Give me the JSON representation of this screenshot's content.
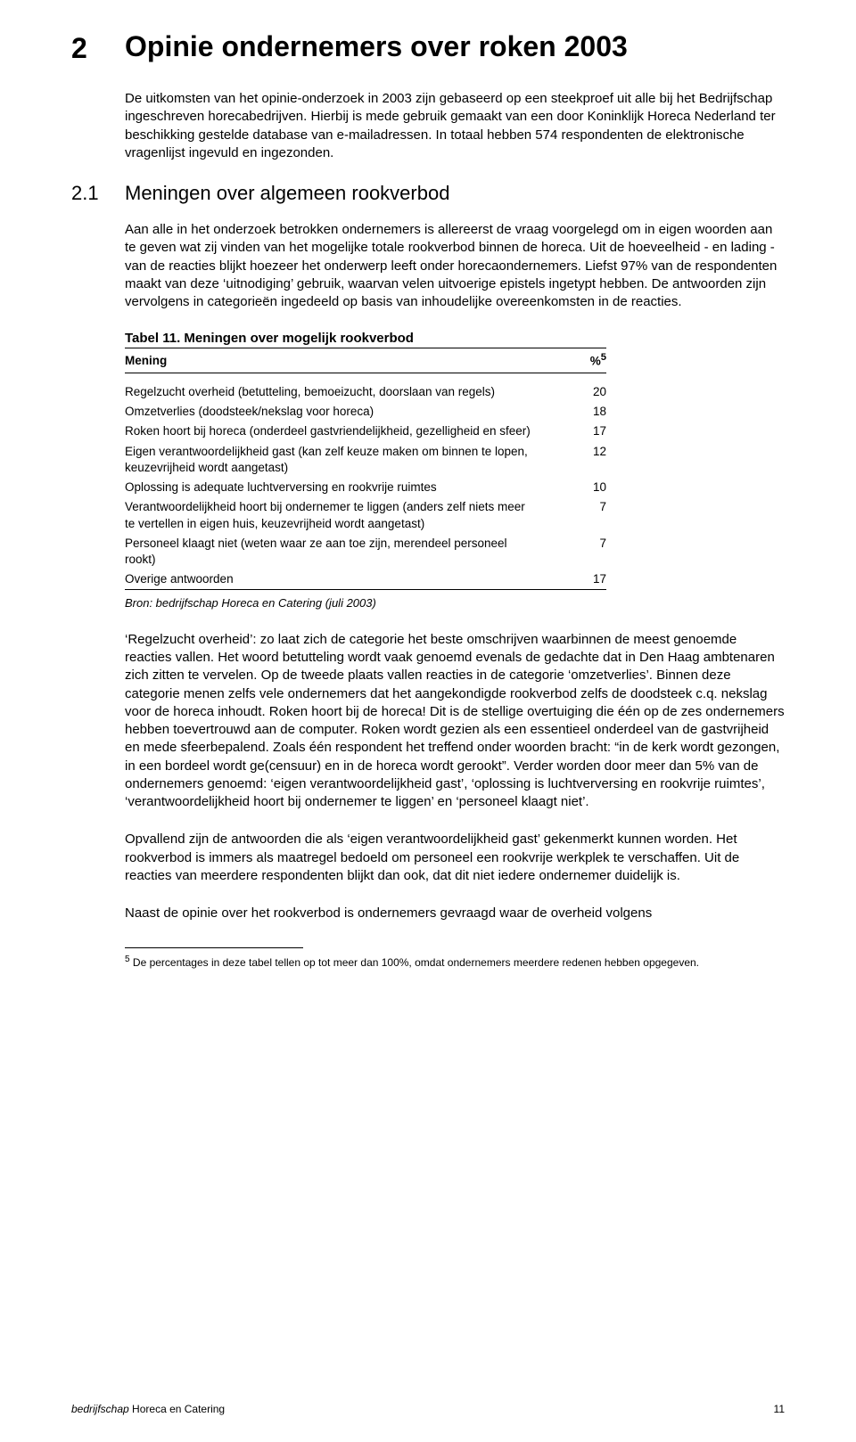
{
  "chapter": {
    "num": "2",
    "title": "Opinie ondernemers over roken 2003"
  },
  "intro_p1": "De uitkomsten van het opinie-onderzoek in 2003 zijn gebaseerd op een steekproef uit alle bij het Bedrijfschap ingeschreven horecabedrijven.",
  "intro_p2": "Hierbij is mede gebruik gemaakt van een door Koninklijk Horeca Nederland ter beschikking gestelde database van e-mailadressen. In totaal hebben 574 respondenten de elektronische vragenlijst ingevuld en ingezonden.",
  "section": {
    "num": "2.1",
    "title": "Meningen over algemeen rookverbod"
  },
  "sec_p1": "Aan alle in het onderzoek betrokken ondernemers is allereerst de vraag voorgelegd om in eigen woorden aan te geven wat zij vinden van het mogelijke totale rookverbod binnen de horeca. Uit de hoeveelheid - en lading - van de reacties blijkt hoezeer het onderwerp leeft onder horecaondernemers. Liefst 97% van de respondenten maakt van deze ‘uitnodiging’ gebruik, waarvan velen uitvoerige epistels ingetypt hebben. De antwoorden zijn vervolgens in categorieën ingedeeld op basis van inhoudelijke overeenkomsten in de reacties.",
  "table": {
    "title": "Tabel 11. Meningen over mogelijk rookverbod",
    "col1": "Mening",
    "col2": "%",
    "col2_sup": "5",
    "rows": [
      {
        "label": "Regelzucht overheid (betutteling, bemoeizucht, doorslaan van regels)",
        "value": "20"
      },
      {
        "label": "Omzetverlies (doodsteek/nekslag voor horeca)",
        "value": "18"
      },
      {
        "label": "Roken hoort bij horeca (onderdeel gastvriendelijkheid, gezelligheid en sfeer)",
        "value": "17"
      },
      {
        "label": "Eigen verantwoordelijkheid gast (kan zelf keuze maken om binnen te lopen, keuzevrijheid wordt aangetast)",
        "value": "12"
      },
      {
        "label": "Oplossing is adequate luchtverversing en rookvrije ruimtes",
        "value": "10"
      },
      {
        "label": "Verantwoordelijkheid hoort bij ondernemer te liggen (anders zelf niets meer te vertellen in eigen huis, keuzevrijheid wordt aangetast)",
        "value": "7"
      },
      {
        "label": "Personeel klaagt niet (weten waar ze aan toe zijn, merendeel personeel rookt)",
        "value": "7"
      },
      {
        "label": "Overige antwoorden",
        "value": "17"
      }
    ],
    "source": "Bron: bedrijfschap Horeca en Catering (juli 2003)"
  },
  "after_p1": "‘Regelzucht overheid’: zo laat zich de categorie het beste omschrijven waarbinnen de meest genoemde reacties vallen. Het woord betutteling wordt vaak genoemd evenals de gedachte dat in Den Haag ambtenaren zich zitten te vervelen. Op de tweede plaats vallen reacties in de categorie ‘omzetverlies’. Binnen deze categorie menen zelfs vele ondernemers dat het aangekondigde rookverbod zelfs de doodsteek c.q. nekslag voor de horeca inhoudt. Roken hoort bij de horeca! Dit is de stellige overtuiging die één op de zes ondernemers hebben toevertrouwd aan de computer. Roken wordt gezien als een essentieel onderdeel van de gastvrijheid en mede sfeerbepalend. Zoals één respondent het treffend onder woorden bracht: “in de kerk wordt gezongen, in een bordeel wordt ge(censuur) en in de horeca wordt gerookt”. Verder worden door meer dan 5% van de ondernemers genoemd: ‘eigen verantwoordelijkheid gast’, ‘oplossing is luchtverversing en rookvrije ruimtes’, ‘verantwoordelijkheid hoort bij ondernemer te liggen’ en ‘personeel klaagt niet’.",
  "after_p2": "Opvallend zijn de antwoorden die als ‘eigen verantwoordelijkheid gast’ gekenmerkt kunnen worden. Het rookverbod is immers als maatregel bedoeld om personeel een rookvrije werkplek te verschaffen. Uit de reacties van meerdere respondenten blijkt dan ook, dat dit niet iedere ondernemer duidelijk is.",
  "after_p3": "Naast de opinie over het rookverbod is ondernemers gevraagd waar de overheid volgens",
  "footnote": {
    "marker": "5",
    "text": " De percentages in deze tabel tellen op tot meer dan 100%, omdat ondernemers meerdere redenen hebben opgegeven."
  },
  "footer": {
    "left_it": "bedrijfschap",
    "left_rest": " Horeca en Catering",
    "page": "11"
  }
}
